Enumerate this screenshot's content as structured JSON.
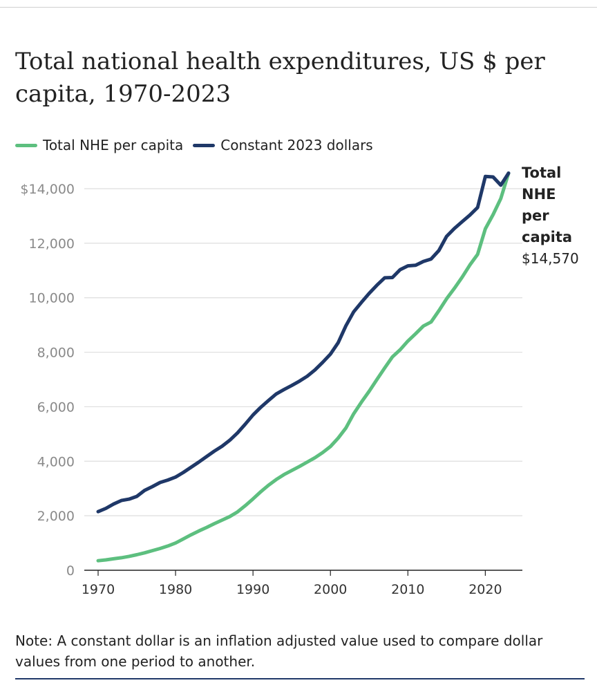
{
  "title": "Total national health expenditures, US $ per capita, 1970-2023",
  "legend": [
    {
      "label": "Total NHE per capita",
      "color": "#5dbf7f"
    },
    {
      "label": "Constant 2023 dollars",
      "color": "#1f3868"
    }
  ],
  "note": "Note: A constant dollar is an inflation adjusted value used to compare dollar values from one period to another.",
  "chart_data": {
    "type": "line",
    "title": "Total national health expenditures, US $ per capita, 1970-2023",
    "xlabel": "",
    "ylabel": "",
    "xlim": [
      1970,
      2023
    ],
    "ylim": [
      0,
      14000
    ],
    "x_ticks": [
      1970,
      1980,
      1990,
      2000,
      2010,
      2020
    ],
    "x_tick_labels": [
      "1970",
      "1980",
      "1990",
      "2000",
      "2010",
      "2020"
    ],
    "y_ticks": [
      0,
      2000,
      4000,
      6000,
      8000,
      10000,
      12000,
      14000
    ],
    "y_tick_labels": [
      "0",
      "2,000",
      "4,000",
      "6,000",
      "8,000",
      "10,000",
      "12,000",
      "$14,000"
    ],
    "grid": "horizontal",
    "legend_position": "top-left",
    "x": [
      1970,
      1971,
      1972,
      1973,
      1974,
      1975,
      1976,
      1977,
      1978,
      1979,
      1980,
      1981,
      1982,
      1983,
      1984,
      1985,
      1986,
      1987,
      1988,
      1989,
      1990,
      1991,
      1992,
      1993,
      1994,
      1995,
      1996,
      1997,
      1998,
      1999,
      2000,
      2001,
      2002,
      2003,
      2004,
      2005,
      2006,
      2007,
      2008,
      2009,
      2010,
      2011,
      2012,
      2013,
      2014,
      2015,
      2016,
      2017,
      2018,
      2019,
      2020,
      2021,
      2022,
      2023
    ],
    "series": [
      {
        "name": "Total NHE per capita",
        "color": "#5dbf7f",
        "values": [
          350,
          380,
          420,
          460,
          510,
          570,
          640,
          720,
          800,
          890,
          1000,
          1150,
          1300,
          1440,
          1570,
          1710,
          1840,
          1970,
          2140,
          2370,
          2620,
          2880,
          3120,
          3330,
          3510,
          3660,
          3810,
          3970,
          4130,
          4320,
          4540,
          4850,
          5220,
          5740,
          6170,
          6570,
          7000,
          7420,
          7830,
          8090,
          8410,
          8680,
          8960,
          9110,
          9520,
          9960,
          10340,
          10750,
          11200,
          11590,
          12530,
          13050,
          13640,
          14570
        ]
      },
      {
        "name": "Constant 2023 dollars",
        "color": "#1f3868",
        "values": [
          2150,
          2270,
          2430,
          2560,
          2610,
          2710,
          2930,
          3070,
          3220,
          3310,
          3420,
          3590,
          3780,
          3970,
          4170,
          4370,
          4550,
          4770,
          5040,
          5360,
          5700,
          5980,
          6230,
          6470,
          6630,
          6780,
          6940,
          7120,
          7350,
          7630,
          7930,
          8350,
          8970,
          9480,
          9830,
          10160,
          10460,
          10730,
          10740,
          11030,
          11170,
          11190,
          11330,
          11420,
          11730,
          12250,
          12540,
          12790,
          13030,
          13310,
          14450,
          14430,
          14130,
          14570
        ]
      }
    ],
    "annotations": [
      {
        "text_lines": [
          "Total",
          "NHE",
          "per",
          "capita"
        ],
        "value_label": "$14,570",
        "series": "Total NHE per capita",
        "x": 2023
      }
    ]
  }
}
